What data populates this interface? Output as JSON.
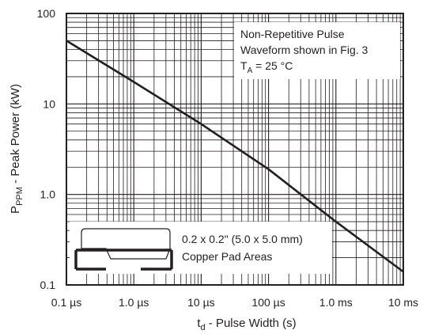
{
  "chart_data": {
    "type": "line",
    "x_scale": "log",
    "y_scale": "log",
    "xlim": [
      "0.1 µs",
      "10 ms"
    ],
    "ylim": [
      0.1,
      100
    ],
    "x_ticks": [
      "0.1 µs",
      "1.0 µs",
      "10 µs",
      "100 µs",
      "1.0 ms",
      "10 ms"
    ],
    "y_ticks": [
      "0.1",
      "1.0",
      "10",
      "100"
    ],
    "xlabel": {
      "main": "t",
      "sub": "d",
      "rest": " - Pulse Width (s)"
    },
    "ylabel": {
      "main": "P",
      "sub": "PPM",
      "rest": " - Peak Power (kW)"
    },
    "grid": true,
    "series": [
      {
        "x": [
          "0.1 µs",
          "1.0 µs",
          "10 µs",
          "100 µs",
          "1.0 ms",
          "10 ms"
        ],
        "y": [
          50,
          17.5,
          6.0,
          1.9,
          0.5,
          0.14
        ]
      }
    ],
    "annotations": {
      "conditions": {
        "line1": "Non-Repetitive Pulse",
        "line2": "Waveform shown in Fig. 3",
        "line3_main": "T",
        "line3_sub": "A",
        "line3_rest": " = 25 °C"
      },
      "pad": {
        "line1": "0.2 x 0.2\" (5.0 x 5.0 mm)",
        "line2": "Copper Pad Areas"
      }
    },
    "colors": {
      "ink": "#231f20",
      "background": "#ffffff"
    }
  }
}
